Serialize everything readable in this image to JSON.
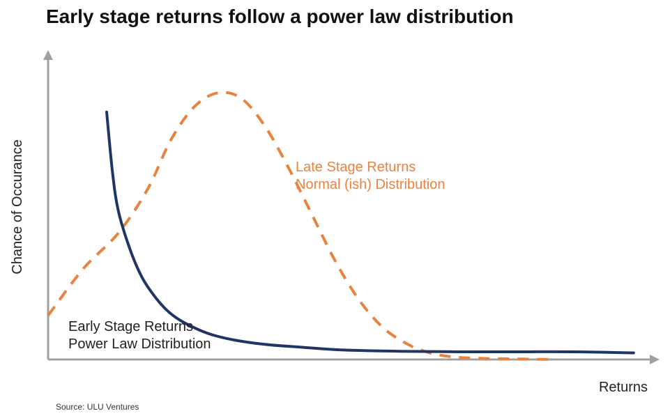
{
  "chart_data": {
    "type": "line",
    "title": "Early stage returns follow a power law distribution",
    "xlabel": "Returns",
    "ylabel": "Chance of Occurance",
    "grid": false,
    "series": [
      {
        "name": "Early Stage Returns",
        "subtitle": "Power Law Distribution",
        "style": "solid",
        "color": "#1f3563",
        "x": [
          0.1,
          0.11,
          0.12,
          0.14,
          0.16,
          0.18,
          0.2,
          0.22,
          0.25,
          0.28,
          0.32,
          0.37,
          0.43,
          0.5,
          0.6,
          0.7,
          0.8,
          0.9,
          1.0
        ],
        "y": [
          0.9,
          0.68,
          0.54,
          0.4,
          0.3,
          0.235,
          0.185,
          0.15,
          0.115,
          0.09,
          0.07,
          0.055,
          0.045,
          0.035,
          0.03,
          0.028,
          0.028,
          0.028,
          0.024
        ]
      },
      {
        "name": "Late Stage Returns",
        "subtitle": "Normal (ish) Distribution",
        "style": "dashed",
        "color": "#e8833f",
        "x": [
          0.0,
          0.06,
          0.12,
          0.17,
          0.21,
          0.25,
          0.29,
          0.33,
          0.37,
          0.41,
          0.45,
          0.49,
          0.53,
          0.57,
          0.61,
          0.65,
          0.69,
          0.74,
          0.8,
          0.86
        ],
        "y": [
          0.16,
          0.33,
          0.46,
          0.62,
          0.8,
          0.92,
          0.97,
          0.95,
          0.85,
          0.7,
          0.53,
          0.36,
          0.22,
          0.12,
          0.06,
          0.025,
          0.01,
          0.004,
          0.002,
          0.0
        ]
      }
    ],
    "xlim": [
      0,
      1.03
    ],
    "ylim": [
      0,
      1.1
    ]
  },
  "source": "Source: ULU Ventures"
}
